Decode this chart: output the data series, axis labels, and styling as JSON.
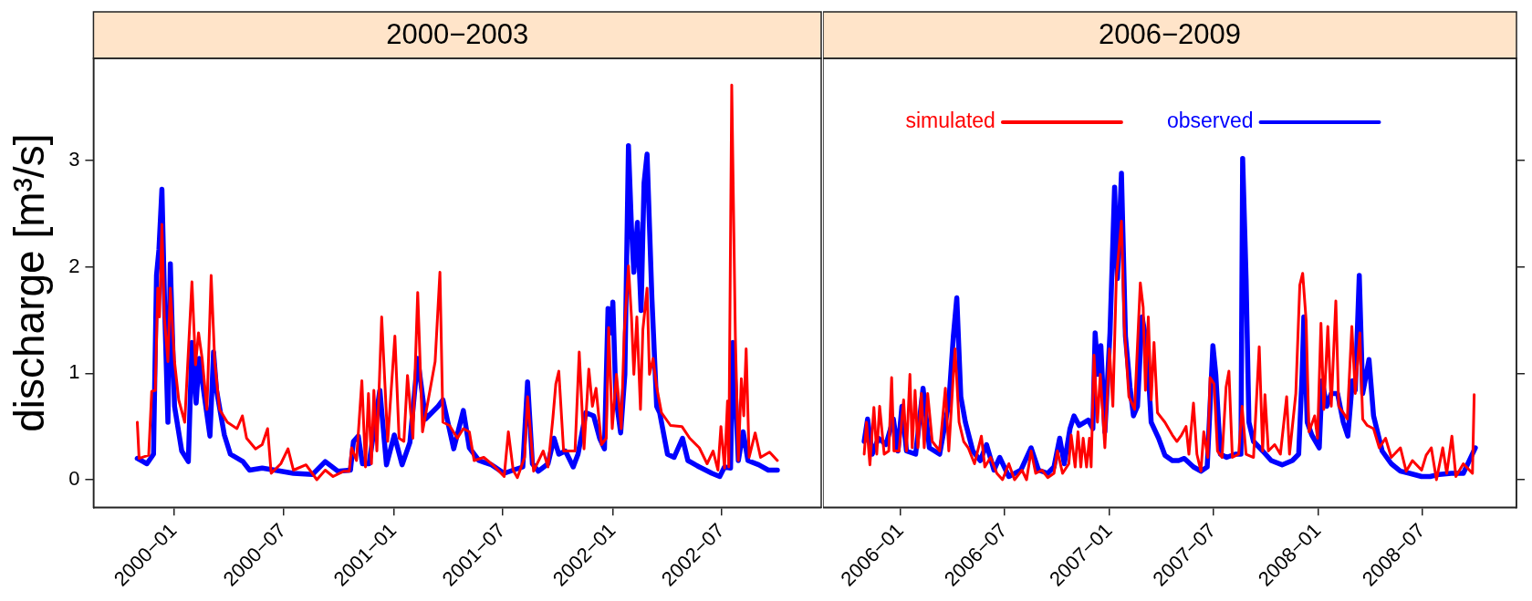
{
  "chart_data": [
    {
      "type": "line",
      "title": "2000−2003",
      "ylabel": "discharge [m³/s]",
      "xlim": [
        "1999-08-20",
        "2002-12-14"
      ],
      "ylim": [
        -0.26,
        3.96
      ],
      "yticks": [
        0,
        1,
        2,
        3
      ],
      "xticks": [
        {
          "value": "2000-01",
          "label": "2000−01"
        },
        {
          "value": "2000-07",
          "label": "2000−07"
        },
        {
          "value": "2001-01",
          "label": "2001−01"
        },
        {
          "value": "2001-07",
          "label": "2001−07"
        },
        {
          "value": "2002-01",
          "label": "2002−01"
        },
        {
          "value": "2002-07",
          "label": "2002−07"
        }
      ],
      "grid": false,
      "legend": false,
      "line_style": "solid",
      "marker": "none",
      "series": [
        {
          "color": "#ff0000",
          "x": [
            "1999-11-01",
            "1999-11-04",
            "1999-11-20",
            "1999-11-25",
            "1999-12-01",
            "1999-12-05",
            "1999-12-08",
            "1999-12-12",
            "1999-12-16",
            "1999-12-22",
            "1999-12-26",
            "2000-01-02",
            "2000-01-09",
            "2000-01-19",
            "2000-01-31",
            "2000-02-06",
            "2000-02-11",
            "2000-02-17",
            "2000-02-25",
            "2000-03-03",
            "2000-03-09",
            "2000-03-17",
            "2000-03-30",
            "2000-04-15",
            "2000-04-24",
            "2000-05-01",
            "2000-05-16",
            "2000-05-27",
            "2000-06-05",
            "2000-06-11",
            "2000-06-27",
            "2000-07-09",
            "2000-07-18",
            "2000-08-08",
            "2000-08-26",
            "2000-09-09",
            "2000-09-22",
            "2000-10-10",
            "2000-10-19",
            "2000-10-23",
            "2000-10-31",
            "2000-11-09",
            "2000-11-15",
            "2000-11-20",
            "2000-11-25",
            "2000-11-29",
            "2000-12-04",
            "2000-12-12",
            "2000-12-22",
            "2001-01-03",
            "2001-01-10",
            "2001-01-18",
            "2001-01-24",
            "2001-02-02",
            "2001-02-10",
            "2001-02-18",
            "2001-03-11",
            "2001-03-19",
            "2001-03-24",
            "2001-04-04",
            "2001-04-17",
            "2001-04-27",
            "2001-05-07",
            "2001-05-15",
            "2001-05-31",
            "2001-06-15",
            "2001-07-04",
            "2001-07-11",
            "2001-07-19",
            "2001-07-26",
            "2001-08-07",
            "2001-08-12",
            "2001-08-22",
            "2001-09-07",
            "2001-09-15",
            "2001-09-23",
            "2001-09-28",
            "2001-10-03",
            "2001-10-11",
            "2001-10-30",
            "2001-11-06",
            "2001-11-14",
            "2001-11-22",
            "2001-11-28",
            "2001-12-04",
            "2001-12-13",
            "2001-12-21",
            "2001-12-25",
            "2001-12-31",
            "2002-01-07",
            "2002-01-15",
            "2002-01-20",
            "2002-01-27",
            "2002-02-01",
            "2002-02-05",
            "2002-02-10",
            "2002-02-16",
            "2002-02-20",
            "2002-02-27",
            "2002-03-03",
            "2002-03-09",
            "2002-03-15",
            "2002-03-23",
            "2002-04-07",
            "2002-04-26",
            "2002-05-09",
            "2002-05-25",
            "2002-06-07",
            "2002-06-17",
            "2002-06-25",
            "2002-06-30",
            "2002-07-06",
            "2002-07-11",
            "2002-07-13",
            "2002-07-18",
            "2002-07-24",
            "2002-07-29",
            "2002-08-03",
            "2002-08-07",
            "2002-08-11",
            "2002-08-16",
            "2002-08-26",
            "2002-09-04",
            "2002-09-19",
            "2002-10-02"
          ],
          "values": [
            0.54,
            0.2,
            0.23,
            0.83,
            0.84,
            1.8,
            1.53,
            2.4,
            1.53,
            1.11,
            1.8,
            1.11,
            0.75,
            0.54,
            1.86,
            1.08,
            1.38,
            1.14,
            0.66,
            1.92,
            1.11,
            0.66,
            0.54,
            0.48,
            0.6,
            0.39,
            0.29,
            0.33,
            0.48,
            0.06,
            0.15,
            0.29,
            0.09,
            0.14,
            0.0,
            0.09,
            0.03,
            0.08,
            0.08,
            0.3,
            0.18,
            0.93,
            0.12,
            0.81,
            0.15,
            0.84,
            0.27,
            1.53,
            0.36,
            1.35,
            0.39,
            0.36,
            0.98,
            0.39,
            1.76,
            0.45,
            1.11,
            1.95,
            0.54,
            0.51,
            0.39,
            0.48,
            0.45,
            0.18,
            0.21,
            0.14,
            0.03,
            0.45,
            0.09,
            0.02,
            0.21,
            0.78,
            0.08,
            0.27,
            0.12,
            0.57,
            0.9,
            1.02,
            0.27,
            0.27,
            1.2,
            0.29,
            1.04,
            0.69,
            0.86,
            0.33,
            0.39,
            1.43,
            0.48,
            0.99,
            0.48,
            1.38,
            2.01,
            1.53,
            0.99,
            1.53,
            0.66,
            1.41,
            1.8,
            0.99,
            1.14,
            0.87,
            0.63,
            0.51,
            0.5,
            0.39,
            0.3,
            0.15,
            0.27,
            0.09,
            0.5,
            0.11,
            0.74,
            0.12,
            3.71,
            1.35,
            0.18,
            0.95,
            0.6,
            1.23,
            0.21,
            0.44,
            0.21,
            0.26,
            0.18
          ]
        },
        {
          "color": "#0000ff",
          "x": [
            "1999-11-01",
            "1999-11-17",
            "1999-11-28",
            "1999-12-03",
            "1999-12-07",
            "1999-12-12",
            "1999-12-17",
            "1999-12-22",
            "1999-12-26",
            "2000-01-02",
            "2000-01-14",
            "2000-01-25",
            "2000-01-31",
            "2000-02-07",
            "2000-02-12",
            "2000-03-01",
            "2000-03-07",
            "2000-03-12",
            "2000-03-25",
            "2000-04-04",
            "2000-04-25",
            "2000-05-06",
            "2000-05-27",
            "2000-06-17",
            "2000-07-18",
            "2000-08-19",
            "2000-09-09",
            "2000-09-30",
            "2000-10-21",
            "2000-10-26",
            "2000-11-03",
            "2000-11-10",
            "2000-11-21",
            "2000-12-09",
            "2000-12-20",
            "2001-01-02",
            "2001-01-15",
            "2001-01-28",
            "2001-02-10",
            "2001-02-23",
            "2001-03-16",
            "2001-03-24",
            "2001-04-11",
            "2001-04-27",
            "2001-05-07",
            "2001-05-23",
            "2001-06-13",
            "2001-07-04",
            "2001-07-19",
            "2001-08-04",
            "2001-08-12",
            "2001-08-20",
            "2001-08-30",
            "2001-09-15",
            "2001-09-25",
            "2001-10-03",
            "2001-10-14",
            "2001-10-27",
            "2001-11-04",
            "2001-11-17",
            "2001-11-30",
            "2001-12-10",
            "2001-12-18",
            "2001-12-24",
            "2001-12-29",
            "2002-01-01",
            "2002-01-06",
            "2002-01-14",
            "2002-01-21",
            "2002-01-27",
            "2002-02-01",
            "2002-02-05",
            "2002-02-11",
            "2002-02-17",
            "2002-02-22",
            "2002-02-27",
            "2002-03-07",
            "2002-03-15",
            "2002-03-20",
            "2002-04-02",
            "2002-04-13",
            "2002-04-27",
            "2002-05-06",
            "2002-05-25",
            "2002-06-15",
            "2002-06-28",
            "2002-07-06",
            "2002-07-16",
            "2002-07-20",
            "2002-07-24",
            "2002-07-29",
            "2002-08-06",
            "2002-08-14",
            "2002-09-01",
            "2002-09-17",
            "2002-10-02"
          ],
          "values": [
            0.2,
            0.15,
            0.24,
            1.92,
            2.16,
            2.73,
            1.53,
            0.54,
            2.03,
            0.69,
            0.27,
            0.17,
            1.29,
            0.72,
            1.14,
            0.41,
            1.2,
            0.84,
            0.42,
            0.24,
            0.17,
            0.09,
            0.11,
            0.09,
            0.06,
            0.05,
            0.17,
            0.08,
            0.09,
            0.36,
            0.41,
            0.15,
            0.15,
            0.84,
            0.14,
            0.42,
            0.14,
            0.35,
            1.14,
            0.57,
            0.69,
            0.75,
            0.29,
            0.65,
            0.3,
            0.18,
            0.14,
            0.06,
            0.09,
            0.12,
            0.92,
            0.15,
            0.08,
            0.15,
            0.39,
            0.24,
            0.27,
            0.12,
            0.24,
            0.63,
            0.6,
            0.39,
            0.29,
            1.61,
            1.38,
            1.67,
            0.78,
            0.44,
            0.99,
            3.14,
            2.37,
            1.95,
            2.42,
            1.59,
            2.79,
            3.06,
            1.71,
            0.69,
            0.63,
            0.24,
            0.21,
            0.39,
            0.18,
            0.12,
            0.06,
            0.03,
            0.12,
            0.11,
            1.29,
            0.84,
            0.18,
            0.45,
            0.18,
            0.14,
            0.09,
            0.09
          ]
        }
      ]
    },
    {
      "type": "line",
      "title": "2006−2009",
      "xlim": [
        "2005-08-18",
        "2008-12-13"
      ],
      "ylim": [
        -0.26,
        3.96
      ],
      "yticks": [
        0,
        1,
        2,
        3
      ],
      "tick_labels": "x",
      "xticks": [
        {
          "value": "2006-01",
          "label": "2006−01"
        },
        {
          "value": "2006-07",
          "label": "2006−07"
        },
        {
          "value": "2007-01",
          "label": "2007−01"
        },
        {
          "value": "2007-07",
          "label": "2007−07"
        },
        {
          "value": "2008-01",
          "label": "2008−01"
        },
        {
          "value": "2008-07",
          "label": "2008−07"
        }
      ],
      "grid": false,
      "legend": "top",
      "line_style": "solid",
      "marker": "none",
      "series": [
        {
          "name": "simulated",
          "color": "#ff0000",
          "x": [
            "2005-10-29",
            "2005-11-02",
            "2005-11-08",
            "2005-11-15",
            "2005-11-20",
            "2005-11-25",
            "2005-12-03",
            "2005-12-11",
            "2005-12-16",
            "2005-12-20",
            "2005-12-29",
            "2006-01-06",
            "2006-01-11",
            "2006-01-17",
            "2006-01-21",
            "2006-01-26",
            "2006-01-31",
            "2006-02-06",
            "2006-02-11",
            "2006-02-17",
            "2006-02-25",
            "2006-03-10",
            "2006-03-20",
            "2006-03-26",
            "2006-04-03",
            "2006-04-06",
            "2006-04-13",
            "2006-04-21",
            "2006-04-29",
            "2006-05-10",
            "2006-05-22",
            "2006-05-28",
            "2006-06-07",
            "2006-06-18",
            "2006-06-28",
            "2006-07-09",
            "2006-07-19",
            "2006-08-01",
            "2006-08-09",
            "2006-08-17",
            "2006-08-25",
            "2006-09-05",
            "2006-09-15",
            "2006-09-26",
            "2006-10-02",
            "2006-10-11",
            "2006-10-22",
            "2006-10-26",
            "2006-11-02",
            "2006-11-07",
            "2006-11-12",
            "2006-11-16",
            "2006-11-22",
            "2006-11-27",
            "2006-11-30",
            "2006-12-05",
            "2006-12-11",
            "2006-12-16",
            "2006-12-24",
            "2007-01-01",
            "2007-01-07",
            "2007-01-13",
            "2007-01-22",
            "2007-01-27",
            "2007-02-04",
            "2007-02-14",
            "2007-02-24",
            "2007-03-01",
            "2007-03-05",
            "2007-03-10",
            "2007-03-15",
            "2007-03-20",
            "2007-03-26",
            "2007-04-08",
            "2007-04-21",
            "2007-04-29",
            "2007-05-07",
            "2007-05-15",
            "2007-05-20",
            "2007-05-28",
            "2007-06-03",
            "2007-06-10",
            "2007-06-15",
            "2007-06-22",
            "2007-06-26",
            "2007-07-03",
            "2007-07-09",
            "2007-07-17",
            "2007-07-24",
            "2007-07-29",
            "2007-08-04",
            "2007-08-15",
            "2007-08-21",
            "2007-08-28",
            "2007-09-10",
            "2007-09-20",
            "2007-09-26",
            "2007-09-30",
            "2007-10-06",
            "2007-10-17",
            "2007-10-27",
            "2007-11-07",
            "2007-11-12",
            "2007-11-23",
            "2007-11-30",
            "2007-12-05",
            "2007-12-11",
            "2007-12-16",
            "2007-12-26",
            "2007-12-31",
            "2008-01-06",
            "2008-01-11",
            "2008-01-18",
            "2008-01-24",
            "2008-02-01",
            "2008-02-06",
            "2008-02-14",
            "2008-02-21",
            "2008-02-29",
            "2008-03-06",
            "2008-03-14",
            "2008-03-19",
            "2008-03-27",
            "2008-04-07",
            "2008-04-17",
            "2008-04-28",
            "2008-05-08",
            "2008-05-24",
            "2008-06-03",
            "2008-06-14",
            "2008-06-30",
            "2008-07-08",
            "2008-07-17",
            "2008-07-26",
            "2008-08-06",
            "2008-08-13",
            "2008-08-22",
            "2008-08-29",
            "2008-09-11",
            "2008-09-27",
            "2008-09-30"
          ],
          "values": [
            0.24,
            0.54,
            0.14,
            0.68,
            0.24,
            0.69,
            0.24,
            0.27,
            0.96,
            0.27,
            0.27,
            0.75,
            0.27,
            0.99,
            0.3,
            0.84,
            0.3,
            0.81,
            0.3,
            0.81,
            0.36,
            0.27,
            0.86,
            0.27,
            0.99,
            1.23,
            0.54,
            0.36,
            0.3,
            0.15,
            0.41,
            0.12,
            0.21,
            0.06,
            0.0,
            0.15,
            0.0,
            0.09,
            0.0,
            0.27,
            0.06,
            0.09,
            0.02,
            0.06,
            0.27,
            0.06,
            0.15,
            0.42,
            0.12,
            0.45,
            0.12,
            0.39,
            0.12,
            0.39,
            0.12,
            1.17,
            0.54,
            0.99,
            0.3,
            1.23,
            0.69,
            1.89,
            2.43,
            1.44,
            0.78,
            0.66,
            1.85,
            1.62,
            0.84,
            1.53,
            0.75,
            1.29,
            0.63,
            0.54,
            0.42,
            0.36,
            0.42,
            0.5,
            0.24,
            0.72,
            0.24,
            0.08,
            0.45,
            0.21,
            0.96,
            0.9,
            0.27,
            0.21,
            0.87,
            1.02,
            0.21,
            0.24,
            0.69,
            0.24,
            0.21,
            1.25,
            0.27,
            0.8,
            0.27,
            0.33,
            0.24,
            0.78,
            0.24,
            0.81,
            1.83,
            1.94,
            1.5,
            0.45,
            0.6,
            0.39,
            1.47,
            0.66,
            1.44,
            0.69,
            1.68,
            0.69,
            0.63,
            0.57,
            1.44,
            0.81,
            1.38,
            0.57,
            0.51,
            0.48,
            0.3,
            0.39,
            0.21,
            0.3,
            0.08,
            0.18,
            0.09,
            0.23,
            0.3,
            0.0,
            0.3,
            0.06,
            0.41,
            0.03,
            0.15,
            0.06,
            0.8
          ]
        },
        {
          "name": "observed",
          "color": "#0000ff",
          "x": [
            "2005-10-29",
            "2005-11-04",
            "2005-11-12",
            "2005-11-23",
            "2005-12-06",
            "2005-12-19",
            "2005-12-27",
            "2006-01-03",
            "2006-01-11",
            "2006-01-27",
            "2006-02-09",
            "2006-02-20",
            "2006-03-10",
            "2006-03-26",
            "2006-04-03",
            "2006-04-09",
            "2006-04-16",
            "2006-04-24",
            "2006-05-07",
            "2006-05-20",
            "2006-05-31",
            "2006-06-13",
            "2006-06-23",
            "2006-07-09",
            "2006-07-30",
            "2006-08-17",
            "2006-08-30",
            "2006-09-15",
            "2006-09-26",
            "2006-10-06",
            "2006-10-14",
            "2006-10-24",
            "2006-10-31",
            "2006-11-09",
            "2006-11-25",
            "2006-12-03",
            "2006-12-07",
            "2006-12-12",
            "2006-12-17",
            "2006-12-24",
            "2007-01-02",
            "2007-01-10",
            "2007-01-15",
            "2007-01-22",
            "2007-01-29",
            "2007-02-06",
            "2007-02-12",
            "2007-02-19",
            "2007-02-27",
            "2007-03-07",
            "2007-03-15",
            "2007-03-28",
            "2007-04-08",
            "2007-04-21",
            "2007-05-02",
            "2007-05-12",
            "2007-05-28",
            "2007-06-10",
            "2007-06-21",
            "2007-07-01",
            "2007-07-06",
            "2007-07-14",
            "2007-07-25",
            "2007-08-09",
            "2007-08-19",
            "2007-08-22",
            "2007-08-28",
            "2007-09-02",
            "2007-09-10",
            "2007-09-26",
            "2007-10-11",
            "2007-10-30",
            "2007-11-17",
            "2007-11-28",
            "2007-12-04",
            "2007-12-07",
            "2007-12-13",
            "2007-12-21",
            "2008-01-03",
            "2008-01-08",
            "2008-01-16",
            "2008-01-24",
            "2008-02-04",
            "2008-02-14",
            "2008-02-22",
            "2008-03-01",
            "2008-03-06",
            "2008-03-13",
            "2008-03-19",
            "2008-03-30",
            "2008-04-07",
            "2008-04-22",
            "2008-05-08",
            "2008-05-24",
            "2008-06-09",
            "2008-06-30",
            "2008-07-15",
            "2008-07-31",
            "2008-08-21",
            "2008-09-11",
            "2008-10-02"
          ],
          "values": [
            0.36,
            0.57,
            0.24,
            0.39,
            0.33,
            0.57,
            0.27,
            0.69,
            0.27,
            0.24,
            0.86,
            0.3,
            0.24,
            0.72,
            1.35,
            1.71,
            0.78,
            0.54,
            0.27,
            0.18,
            0.33,
            0.09,
            0.21,
            0.03,
            0.09,
            0.3,
            0.09,
            0.06,
            0.12,
            0.39,
            0.15,
            0.48,
            0.6,
            0.51,
            0.56,
            0.48,
            1.38,
            0.99,
            1.26,
            0.45,
            1.38,
            2.75,
            1.89,
            2.88,
            1.35,
            0.87,
            0.6,
            0.69,
            1.53,
            1.29,
            0.54,
            0.39,
            0.23,
            0.18,
            0.18,
            0.2,
            0.12,
            0.08,
            0.12,
            1.26,
            0.99,
            0.24,
            0.21,
            0.24,
            0.24,
            3.02,
            1.89,
            0.54,
            0.36,
            0.27,
            0.18,
            0.14,
            0.18,
            0.24,
            0.99,
            1.53,
            0.54,
            0.42,
            0.3,
            0.93,
            0.69,
            0.81,
            0.81,
            0.54,
            0.41,
            0.93,
            0.84,
            1.92,
            0.81,
            1.13,
            0.6,
            0.27,
            0.15,
            0.08,
            0.06,
            0.03,
            0.03,
            0.05,
            0.06,
            0.06,
            0.3
          ]
        }
      ]
    }
  ]
}
